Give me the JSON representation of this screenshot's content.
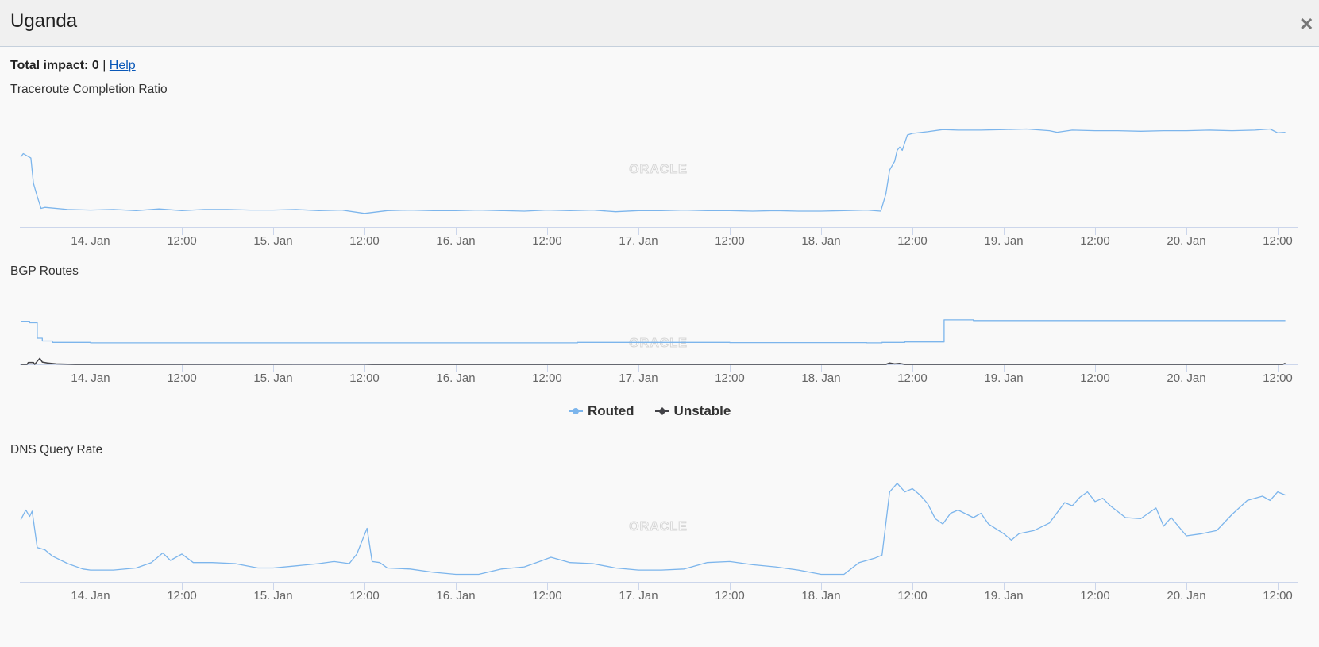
{
  "header": {
    "title": "Uganda",
    "close_icon": "close-icon"
  },
  "summary": {
    "label": "Total impact:",
    "value": "0",
    "separator": "|",
    "help_link": "Help"
  },
  "watermark": "ORACLE",
  "colors": {
    "routed": "#7cb5ec",
    "unstable": "#434348",
    "axis": "#ccd6eb",
    "tick_text": "#666666",
    "watermark": "#d6d6d6"
  },
  "legend": [
    {
      "label": "Routed",
      "color": "#7cb5ec",
      "marker": "circle"
    },
    {
      "label": "Unstable",
      "color": "#434348",
      "marker": "diamond"
    }
  ],
  "x_ticks": [
    "14. Jan",
    "12:00",
    "15. Jan",
    "12:00",
    "16. Jan",
    "12:00",
    "17. Jan",
    "12:00",
    "18. Jan",
    "12:00",
    "19. Jan",
    "12:00",
    "20. Jan",
    "12:00"
  ],
  "chart_data": [
    {
      "title": "Traceroute Completion Ratio",
      "type": "line",
      "x_range": [
        "01-13 14:40",
        "01-20 14:00"
      ],
      "ylim": [
        0,
        100
      ],
      "y_axis_labels": false,
      "series": [
        {
          "color": "#7cb5ec",
          "points": [
            [
              "01-13 14:50",
              64
            ],
            [
              "01-13 15:10",
              67
            ],
            [
              "01-13 15:40",
              65
            ],
            [
              "01-13 16:10",
              63
            ],
            [
              "01-13 16:30",
              40
            ],
            [
              "01-13 17:00",
              28
            ],
            [
              "01-13 17:30",
              17
            ],
            [
              "01-13 18:00",
              18
            ],
            [
              "01-13 21:00",
              16
            ],
            [
              "01-14 00:00",
              15.5
            ],
            [
              "01-14 03:00",
              16
            ],
            [
              "01-14 06:00",
              15
            ],
            [
              "01-14 09:00",
              16.5
            ],
            [
              "01-14 12:00",
              15
            ],
            [
              "01-14 15:00",
              16
            ],
            [
              "01-14 18:00",
              16
            ],
            [
              "01-14 21:00",
              15.5
            ],
            [
              "01-15 00:00",
              15.5
            ],
            [
              "01-15 03:00",
              16
            ],
            [
              "01-15 06:00",
              15
            ],
            [
              "01-15 09:00",
              15.5
            ],
            [
              "01-15 12:00",
              12.5
            ],
            [
              "01-15 15:00",
              15
            ],
            [
              "01-15 18:00",
              15.5
            ],
            [
              "01-15 21:00",
              15
            ],
            [
              "01-16 00:00",
              15
            ],
            [
              "01-16 03:00",
              15.5
            ],
            [
              "01-16 06:00",
              15
            ],
            [
              "01-16 09:00",
              14.5
            ],
            [
              "01-16 12:00",
              15.5
            ],
            [
              "01-16 15:00",
              15
            ],
            [
              "01-16 18:00",
              15.5
            ],
            [
              "01-16 21:00",
              14
            ],
            [
              "01-17 00:00",
              15
            ],
            [
              "01-17 03:00",
              15
            ],
            [
              "01-17 06:00",
              15.5
            ],
            [
              "01-17 09:00",
              15
            ],
            [
              "01-17 12:00",
              15
            ],
            [
              "01-17 15:00",
              14.5
            ],
            [
              "01-17 18:00",
              15
            ],
            [
              "01-17 21:00",
              14.5
            ],
            [
              "01-18 00:00",
              14.5
            ],
            [
              "01-18 03:00",
              15
            ],
            [
              "01-18 06:00",
              15.5
            ],
            [
              "01-18 07:50",
              14.5
            ],
            [
              "01-18 08:30",
              30
            ],
            [
              "01-18 09:00",
              52
            ],
            [
              "01-18 09:40",
              60
            ],
            [
              "01-18 10:00",
              70
            ],
            [
              "01-18 10:20",
              73
            ],
            [
              "01-18 10:40",
              70
            ],
            [
              "01-18 11:20",
              84
            ],
            [
              "01-18 12:00",
              85.5
            ],
            [
              "01-18 14:00",
              87
            ],
            [
              "01-18 16:00",
              89
            ],
            [
              "01-18 18:00",
              88.5
            ],
            [
              "01-18 21:00",
              88.5
            ],
            [
              "01-19 00:00",
              89
            ],
            [
              "01-19 03:00",
              89.5
            ],
            [
              "01-19 06:00",
              88
            ],
            [
              "01-19 07:00",
              86.5
            ],
            [
              "01-19 09:00",
              88.5
            ],
            [
              "01-19 12:00",
              88
            ],
            [
              "01-19 15:00",
              88
            ],
            [
              "01-19 18:00",
              87.5
            ],
            [
              "01-19 21:00",
              88
            ],
            [
              "01-20 00:00",
              88
            ],
            [
              "01-20 03:00",
              88.5
            ],
            [
              "01-20 06:00",
              88
            ],
            [
              "01-20 09:00",
              88.5
            ],
            [
              "01-20 11:00",
              89.5
            ],
            [
              "01-20 12:00",
              86
            ],
            [
              "01-20 13:00",
              86.5
            ]
          ]
        }
      ]
    },
    {
      "title": "BGP Routes",
      "type": "line",
      "x_range": [
        "01-13 14:40",
        "01-20 14:00"
      ],
      "ylim": [
        0,
        100
      ],
      "y_axis_labels": false,
      "series": [
        {
          "name": "Routed",
          "color": "#7cb5ec",
          "step": true,
          "points": [
            [
              "01-13 14:50",
              92
            ],
            [
              "01-13 16:00",
              89
            ],
            [
              "01-13 17:00",
              56
            ],
            [
              "01-13 17:40",
              50
            ],
            [
              "01-13 19:00",
              47
            ],
            [
              "01-14 00:00",
              46
            ],
            [
              "01-15 00:00",
              46
            ],
            [
              "01-16 00:00",
              46
            ],
            [
              "01-16 16:00",
              47
            ],
            [
              "01-17 12:00",
              46.5
            ],
            [
              "01-18 06:00",
              46
            ],
            [
              "01-18 08:00",
              47
            ],
            [
              "01-18 11:00",
              48
            ],
            [
              "01-18 16:10",
              95
            ],
            [
              "01-18 20:00",
              93.5
            ],
            [
              "01-20 13:00",
              93.5
            ]
          ]
        },
        {
          "name": "Unstable",
          "color": "#434348",
          "points": [
            [
              "01-13 14:50",
              0
            ],
            [
              "01-13 15:40",
              0
            ],
            [
              "01-13 15:50",
              4
            ],
            [
              "01-13 16:30",
              4
            ],
            [
              "01-13 16:40",
              0
            ],
            [
              "01-13 17:20",
              13
            ],
            [
              "01-13 17:40",
              5
            ],
            [
              "01-13 18:20",
              3
            ],
            [
              "01-13 19:30",
              1
            ],
            [
              "01-13 22:00",
              0
            ],
            [
              "01-15 12:00",
              0.5
            ],
            [
              "01-15 13:00",
              0
            ],
            [
              "01-18 08:30",
              0
            ],
            [
              "01-18 09:00",
              3
            ],
            [
              "01-18 09:40",
              1
            ],
            [
              "01-18 10:20",
              2
            ],
            [
              "01-18 11:00",
              0
            ],
            [
              "01-20 12:40",
              0
            ],
            [
              "01-20 13:00",
              2.5
            ]
          ]
        }
      ]
    },
    {
      "title": "DNS Query Rate",
      "type": "line",
      "x_range": [
        "01-13 14:40",
        "01-20 14:00"
      ],
      "ylim": [
        0,
        100
      ],
      "y_axis_labels": false,
      "series": [
        {
          "color": "#7cb5ec",
          "points": [
            [
              "01-13 14:50",
              58
            ],
            [
              "01-13 15:30",
              67
            ],
            [
              "01-13 16:00",
              61
            ],
            [
              "01-13 16:20",
              66
            ],
            [
              "01-13 17:00",
              32
            ],
            [
              "01-13 18:00",
              30
            ],
            [
              "01-13 19:00",
              24
            ],
            [
              "01-13 21:00",
              17
            ],
            [
              "01-13 23:00",
              12
            ],
            [
              "01-14 00:00",
              11
            ],
            [
              "01-14 03:00",
              11
            ],
            [
              "01-14 06:00",
              13
            ],
            [
              "01-14 08:00",
              18
            ],
            [
              "01-14 09:30",
              27
            ],
            [
              "01-14 10:30",
              20
            ],
            [
              "01-14 12:00",
              26
            ],
            [
              "01-14 13:30",
              18
            ],
            [
              "01-14 16:00",
              18
            ],
            [
              "01-14 19:00",
              17
            ],
            [
              "01-14 22:00",
              13
            ],
            [
              "01-15 00:00",
              13
            ],
            [
              "01-15 03:00",
              15
            ],
            [
              "01-15 06:00",
              17
            ],
            [
              "01-15 08:00",
              19
            ],
            [
              "01-15 10:00",
              17
            ],
            [
              "01-15 11:00",
              26
            ],
            [
              "01-15 12:20",
              50
            ],
            [
              "01-15 13:00",
              19
            ],
            [
              "01-15 14:00",
              18
            ],
            [
              "01-15 15:00",
              13
            ],
            [
              "01-15 18:00",
              12
            ],
            [
              "01-15 21:00",
              9
            ],
            [
              "01-16 00:00",
              7
            ],
            [
              "01-16 03:00",
              7
            ],
            [
              "01-16 06:00",
              12
            ],
            [
              "01-16 09:00",
              14
            ],
            [
              "01-16 11:00",
              19
            ],
            [
              "01-16 12:30",
              23
            ],
            [
              "01-16 15:00",
              18
            ],
            [
              "01-16 18:00",
              17
            ],
            [
              "01-16 21:00",
              13
            ],
            [
              "01-17 00:00",
              11
            ],
            [
              "01-17 03:00",
              11
            ],
            [
              "01-17 06:00",
              12
            ],
            [
              "01-17 09:00",
              18
            ],
            [
              "01-17 12:00",
              19
            ],
            [
              "01-17 15:00",
              16
            ],
            [
              "01-17 18:00",
              14
            ],
            [
              "01-17 21:00",
              11
            ],
            [
              "01-18 00:00",
              7
            ],
            [
              "01-18 03:00",
              7
            ],
            [
              "01-18 05:00",
              18
            ],
            [
              "01-18 07:00",
              22
            ],
            [
              "01-18 08:00",
              25
            ],
            [
              "01-18 09:00",
              84
            ],
            [
              "01-18 10:00",
              92
            ],
            [
              "01-18 11:00",
              84
            ],
            [
              "01-18 12:00",
              87
            ],
            [
              "01-18 13:00",
              81
            ],
            [
              "01-18 14:00",
              73
            ],
            [
              "01-18 15:00",
              59
            ],
            [
              "01-18 16:00",
              54
            ],
            [
              "01-18 17:00",
              64
            ],
            [
              "01-18 18:00",
              67
            ],
            [
              "01-18 20:00",
              60
            ],
            [
              "01-18 21:00",
              64
            ],
            [
              "01-18 22:00",
              54
            ],
            [
              "01-19 00:00",
              45
            ],
            [
              "01-19 01:00",
              39
            ],
            [
              "01-19 02:00",
              45
            ],
            [
              "01-19 04:00",
              48
            ],
            [
              "01-19 06:00",
              55
            ],
            [
              "01-19 08:00",
              74
            ],
            [
              "01-19 09:00",
              71
            ],
            [
              "01-19 10:00",
              79
            ],
            [
              "01-19 11:00",
              84
            ],
            [
              "01-19 12:00",
              75
            ],
            [
              "01-19 13:00",
              78
            ],
            [
              "01-19 14:00",
              71
            ],
            [
              "01-19 16:00",
              60
            ],
            [
              "01-19 18:00",
              59
            ],
            [
              "01-19 20:00",
              69
            ],
            [
              "01-19 21:00",
              52
            ],
            [
              "01-19 22:00",
              60
            ],
            [
              "01-20 00:00",
              43
            ],
            [
              "01-20 02:00",
              45
            ],
            [
              "01-20 04:00",
              48
            ],
            [
              "01-20 06:00",
              63
            ],
            [
              "01-20 08:00",
              76
            ],
            [
              "01-20 10:00",
              80
            ],
            [
              "01-20 11:00",
              76
            ],
            [
              "01-20 12:00",
              84
            ],
            [
              "01-20 13:00",
              81
            ]
          ]
        }
      ]
    }
  ]
}
